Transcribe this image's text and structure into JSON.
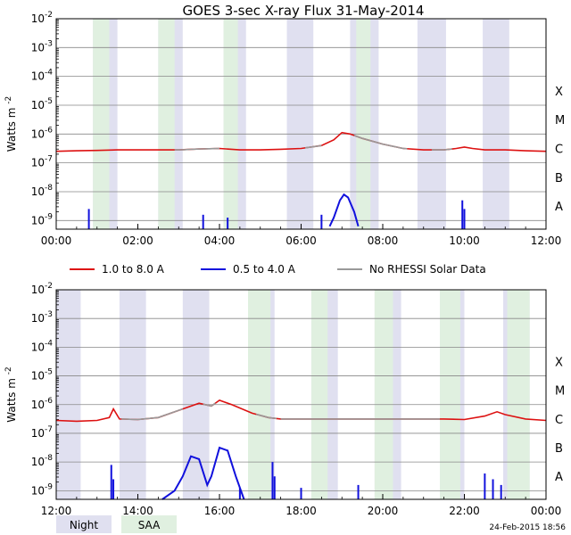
{
  "title": "GOES 3-sec X-ray Flux   31-May-2014",
  "footer_timestamp": "24-Feb-2015 18:56",
  "legend": {
    "items": [
      {
        "label": "1.0 to 8.0 A",
        "color": "#dd1111"
      },
      {
        "label": "0.5 to 4.0 A",
        "color": "#1111dd"
      },
      {
        "label": "No RHESSI Solar Data",
        "color": "#999999"
      }
    ],
    "shading": [
      {
        "label": "Night",
        "color": "#e0e0f0"
      },
      {
        "label": "SAA",
        "color": "#e0f0e0"
      }
    ]
  },
  "chart_data": [
    {
      "type": "line",
      "title": "GOES 3-sec X-ray Flux   31-May-2014",
      "ylabel": "Watts m",
      "ylabel_sup": "-2",
      "yscale": "log",
      "ylim_exp": [
        -9.3,
        -2
      ],
      "y_tick_exponents": [
        -9,
        -8,
        -7,
        -6,
        -5,
        -4,
        -3,
        -2
      ],
      "flare_classes": [
        {
          "label": "A",
          "exp": -8.5
        },
        {
          "label": "B",
          "exp": -7.5
        },
        {
          "label": "C",
          "exp": -6.5
        },
        {
          "label": "M",
          "exp": -5.5
        },
        {
          "label": "X",
          "exp": -4.5
        }
      ],
      "xlim_hours": [
        0,
        12
      ],
      "x_ticks": [
        {
          "h": 0,
          "label": "00:00"
        },
        {
          "h": 2,
          "label": "02:00"
        },
        {
          "h": 4,
          "label": "04:00"
        },
        {
          "h": 6,
          "label": "06:00"
        },
        {
          "h": 8,
          "label": "08:00"
        },
        {
          "h": 10,
          "label": "10:00"
        },
        {
          "h": 12,
          "label": "12:00"
        }
      ],
      "night": [
        [
          0.9,
          1.5
        ],
        [
          2.5,
          3.1
        ],
        [
          4.1,
          4.65
        ],
        [
          5.65,
          6.3
        ],
        [
          7.2,
          7.9
        ],
        [
          8.85,
          9.55
        ],
        [
          10.45,
          11.1
        ]
      ],
      "saa": [
        [
          0.9,
          1.3
        ],
        [
          2.5,
          2.9
        ],
        [
          4.1,
          4.45
        ],
        [
          7.35,
          7.7
        ]
      ],
      "series": [
        {
          "name": "1.0 to 8.0 A",
          "color": "#dd1111",
          "points": [
            [
              0,
              -6.6
            ],
            [
              0.5,
              -6.58
            ],
            [
              1,
              -6.57
            ],
            [
              1.5,
              -6.55
            ],
            [
              2,
              -6.55
            ],
            [
              2.5,
              -6.55
            ],
            [
              3,
              -6.55
            ],
            [
              3.5,
              -6.52
            ],
            [
              4,
              -6.5
            ],
            [
              4.5,
              -6.55
            ],
            [
              5,
              -6.55
            ],
            [
              5.5,
              -6.53
            ],
            [
              6,
              -6.5
            ],
            [
              6.5,
              -6.4
            ],
            [
              6.8,
              -6.2
            ],
            [
              7.0,
              -5.95
            ],
            [
              7.2,
              -6.0
            ],
            [
              7.5,
              -6.15
            ],
            [
              8,
              -6.35
            ],
            [
              8.5,
              -6.5
            ],
            [
              9,
              -6.55
            ],
            [
              9.5,
              -6.55
            ],
            [
              9.8,
              -6.5
            ],
            [
              10,
              -6.45
            ],
            [
              10.2,
              -6.5
            ],
            [
              10.5,
              -6.55
            ],
            [
              11,
              -6.55
            ],
            [
              11.5,
              -6.58
            ],
            [
              12,
              -6.6
            ]
          ]
        },
        {
          "name": "0.5 to 4.0 A",
          "color": "#1111dd",
          "points": [
            [
              6.7,
              -9.2
            ],
            [
              6.8,
              -8.9
            ],
            [
              6.95,
              -8.3
            ],
            [
              7.05,
              -8.1
            ],
            [
              7.15,
              -8.2
            ],
            [
              7.3,
              -8.7
            ],
            [
              7.4,
              -9.2
            ]
          ]
        }
      ],
      "no_rhessi_segments": [
        [
          2.9,
          4.0
        ],
        [
          6.1,
          6.5
        ],
        [
          7.3,
          8.6
        ],
        [
          9.2,
          9.7
        ]
      ],
      "spikes": [
        [
          0.8,
          -8.6
        ],
        [
          3.6,
          -8.8
        ],
        [
          4.2,
          -8.9
        ],
        [
          6.5,
          -8.8
        ],
        [
          9.95,
          -8.3
        ],
        [
          10.0,
          -8.6
        ]
      ]
    },
    {
      "type": "line",
      "ylabel": "Watts m",
      "ylabel_sup": "-2",
      "yscale": "log",
      "ylim_exp": [
        -9.3,
        -2
      ],
      "y_tick_exponents": [
        -9,
        -8,
        -7,
        -6,
        -5,
        -4,
        -3,
        -2
      ],
      "flare_classes": [
        {
          "label": "A",
          "exp": -8.5
        },
        {
          "label": "B",
          "exp": -7.5
        },
        {
          "label": "C",
          "exp": -6.5
        },
        {
          "label": "M",
          "exp": -5.5
        },
        {
          "label": "X",
          "exp": -4.5
        }
      ],
      "xlim_hours": [
        12,
        24
      ],
      "x_ticks": [
        {
          "h": 12,
          "label": "12:00"
        },
        {
          "h": 14,
          "label": "14:00"
        },
        {
          "h": 16,
          "label": "16:00"
        },
        {
          "h": 18,
          "label": "18:00"
        },
        {
          "h": 20,
          "label": "20:00"
        },
        {
          "h": 22,
          "label": "22:00"
        },
        {
          "h": 24,
          "label": "00:00"
        }
      ],
      "night": [
        [
          12.0,
          12.6
        ],
        [
          13.55,
          14.2
        ],
        [
          15.1,
          15.75
        ],
        [
          16.7,
          17.35
        ],
        [
          18.25,
          18.9
        ],
        [
          19.8,
          20.45
        ],
        [
          21.4,
          22.0
        ],
        [
          22.95,
          23.6
        ]
      ],
      "saa": [
        [
          16.7,
          17.25
        ],
        [
          18.25,
          18.65
        ],
        [
          19.8,
          20.25
        ],
        [
          21.4,
          21.9
        ],
        [
          23.05,
          23.6
        ]
      ],
      "series": [
        {
          "name": "1.0 to 8.0 A",
          "color": "#dd1111",
          "points": [
            [
              12,
              -6.55
            ],
            [
              12.5,
              -6.58
            ],
            [
              13,
              -6.55
            ],
            [
              13.3,
              -6.45
            ],
            [
              13.4,
              -6.15
            ],
            [
              13.55,
              -6.5
            ],
            [
              14,
              -6.52
            ],
            [
              14.5,
              -6.45
            ],
            [
              15,
              -6.2
            ],
            [
              15.5,
              -5.95
            ],
            [
              15.8,
              -6.05
            ],
            [
              16,
              -5.85
            ],
            [
              16.3,
              -6.0
            ],
            [
              16.8,
              -6.3
            ],
            [
              17.2,
              -6.45
            ],
            [
              17.5,
              -6.5
            ],
            [
              18,
              -6.5
            ],
            [
              18.5,
              -6.5
            ],
            [
              19,
              -6.5
            ],
            [
              19.5,
              -6.5
            ],
            [
              20,
              -6.5
            ],
            [
              20.5,
              -6.5
            ],
            [
              21,
              -6.5
            ],
            [
              21.5,
              -6.5
            ],
            [
              22,
              -6.52
            ],
            [
              22.5,
              -6.4
            ],
            [
              22.8,
              -6.25
            ],
            [
              23,
              -6.35
            ],
            [
              23.5,
              -6.5
            ],
            [
              24,
              -6.55
            ]
          ]
        },
        {
          "name": "0.5 to 4.0 A",
          "color": "#1111dd",
          "points": [
            [
              14.6,
              -9.3
            ],
            [
              14.9,
              -9.0
            ],
            [
              15.1,
              -8.5
            ],
            [
              15.3,
              -7.8
            ],
            [
              15.5,
              -7.9
            ],
            [
              15.7,
              -8.8
            ],
            [
              15.8,
              -8.5
            ],
            [
              16.0,
              -7.5
            ],
            [
              16.2,
              -7.6
            ],
            [
              16.4,
              -8.5
            ],
            [
              16.6,
              -9.3
            ]
          ]
        }
      ],
      "no_rhessi_segments": [
        [
          13.6,
          15.1
        ],
        [
          15.6,
          15.9
        ],
        [
          16.9,
          17.4
        ],
        [
          17.5,
          21.4
        ]
      ],
      "spikes": [
        [
          13.35,
          -8.1
        ],
        [
          13.4,
          -8.6
        ],
        [
          16.5,
          -8.9
        ],
        [
          17.3,
          -8.0
        ],
        [
          17.35,
          -8.5
        ],
        [
          18.0,
          -8.9
        ],
        [
          19.4,
          -8.8
        ],
        [
          22.5,
          -8.4
        ],
        [
          22.7,
          -8.6
        ],
        [
          22.9,
          -8.8
        ]
      ]
    }
  ]
}
